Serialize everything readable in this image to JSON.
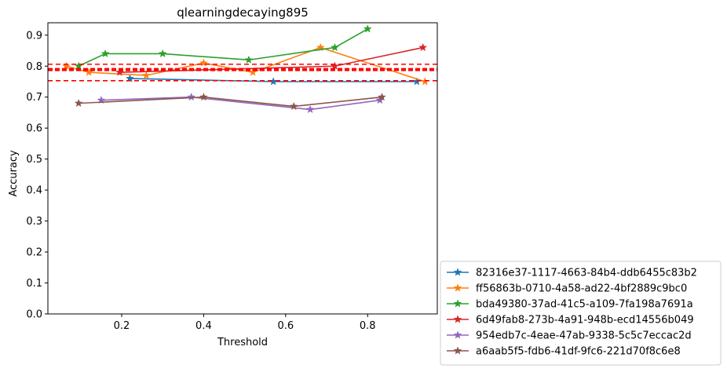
{
  "chart_data": {
    "type": "line",
    "title": "qlearningdecaying895",
    "xlabel": "Threshold",
    "ylabel": "Accuracy",
    "xlim": [
      0.02,
      0.97
    ],
    "ylim": [
      0.0,
      0.94
    ],
    "xticks": [
      0.2,
      0.4,
      0.6,
      0.8
    ],
    "xtick_labels": [
      "0.2",
      "0.4",
      "0.6",
      "0.8"
    ],
    "yticks": [
      0.0,
      0.1,
      0.2,
      0.3,
      0.4,
      0.5,
      0.6,
      0.7,
      0.8,
      0.9
    ],
    "ytick_labels": [
      "0.0",
      "0.1",
      "0.2",
      "0.3",
      "0.4",
      "0.5",
      "0.6",
      "0.7",
      "0.8",
      "0.9"
    ],
    "grid": false,
    "legend_placement": "outside-lower-right",
    "marker": "star",
    "hlines": [
      {
        "y": 0.806,
        "color": "#ff0000",
        "style": "dashed",
        "width": "thin"
      },
      {
        "y": 0.789,
        "color": "#ff0000",
        "style": "dashed",
        "width": "thick"
      },
      {
        "y": 0.753,
        "color": "#ff0000",
        "style": "dashed",
        "width": "thin"
      }
    ],
    "series": [
      {
        "name": "82316e37-1117-4663-84b4-ddb6455c83b2",
        "color": "#1f77b4",
        "x": [
          0.22,
          0.57,
          0.92
        ],
        "y": [
          0.76,
          0.75,
          0.75
        ]
      },
      {
        "name": "ff56863b-0710-4a58-ad22-4bf2889c9bc0",
        "color": "#ff7f0e",
        "x": [
          0.065,
          0.12,
          0.26,
          0.4,
          0.52,
          0.685,
          0.94
        ],
        "y": [
          0.8,
          0.78,
          0.77,
          0.81,
          0.78,
          0.86,
          0.75
        ]
      },
      {
        "name": "bda49380-37ad-41c5-a109-7fa198a7691a",
        "color": "#2ca02c",
        "x": [
          0.095,
          0.16,
          0.3,
          0.51,
          0.72,
          0.8
        ],
        "y": [
          0.8,
          0.84,
          0.84,
          0.82,
          0.86,
          0.92
        ]
      },
      {
        "name": "6d49fab8-273b-4a91-948b-ecd14556b049",
        "color": "#d62728",
        "x": [
          0.195,
          0.72,
          0.935
        ],
        "y": [
          0.78,
          0.8,
          0.86
        ]
      },
      {
        "name": "954edb7c-4eae-47ab-9338-5c5c7eccac2d",
        "color": "#9467bd",
        "x": [
          0.15,
          0.37,
          0.66,
          0.83
        ],
        "y": [
          0.69,
          0.7,
          0.66,
          0.69
        ]
      },
      {
        "name": "a6aab5f5-fdb6-41df-9fc6-221d70f8c6e8",
        "color": "#8c564b",
        "x": [
          0.095,
          0.4,
          0.62,
          0.835
        ],
        "y": [
          0.68,
          0.7,
          0.67,
          0.7
        ]
      }
    ]
  }
}
